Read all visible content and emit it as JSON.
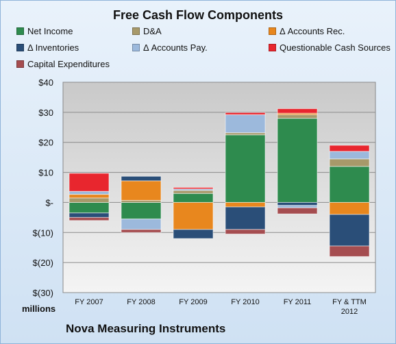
{
  "chart_data": {
    "type": "bar",
    "stacked": true,
    "title": "Free Cash Flow Components",
    "company": "Nova Measuring Instruments",
    "units_label": "millions",
    "ylim": [
      -30,
      40
    ],
    "yticks": [
      40,
      30,
      20,
      10,
      0,
      -10,
      -20,
      -30
    ],
    "ytick_labels": [
      "$40",
      "$30",
      "$20",
      "$10",
      "$-",
      "$(10)",
      "$(20)",
      "$(30)"
    ],
    "grid": true,
    "categories": [
      [
        "FY 2007"
      ],
      [
        "FY 2008"
      ],
      [
        "FY 2009"
      ],
      [
        "FY 2010"
      ],
      [
        "FY 2011"
      ],
      [
        "FY & TTM",
        "2012"
      ]
    ],
    "series": [
      {
        "name": "Net Income",
        "color": "#2e8b4e",
        "values": [
          -3.5,
          -5.5,
          3,
          22.5,
          28,
          12
        ]
      },
      {
        "name": "D&A",
        "color": "#a7996a",
        "values": [
          1.5,
          0.7,
          1,
          0.7,
          1.2,
          2.5
        ]
      },
      {
        "name": "Δ Accounts Rec.",
        "color": "#e8871e",
        "values": [
          1.2,
          6.5,
          -9,
          -1.5,
          0.5,
          -4
        ]
      },
      {
        "name": "Δ Inventories",
        "color": "#2a4e78",
        "values": [
          -1.5,
          1.5,
          -3,
          -7.5,
          -1,
          -10.5
        ]
      },
      {
        "name": "Δ Accounts Pay.",
        "color": "#9cb9dc",
        "values": [
          1,
          -3.5,
          0.5,
          6,
          -0.8,
          2.5
        ]
      },
      {
        "name": "Questionable Cash Sources",
        "color": "#e8262e",
        "values": [
          6,
          0,
          0.5,
          0.7,
          1.5,
          2
        ]
      },
      {
        "name": "Capital Expenditures",
        "color": "#a54d50",
        "values": [
          -1,
          -1,
          0,
          -1.5,
          -2,
          -3.5
        ]
      }
    ]
  }
}
